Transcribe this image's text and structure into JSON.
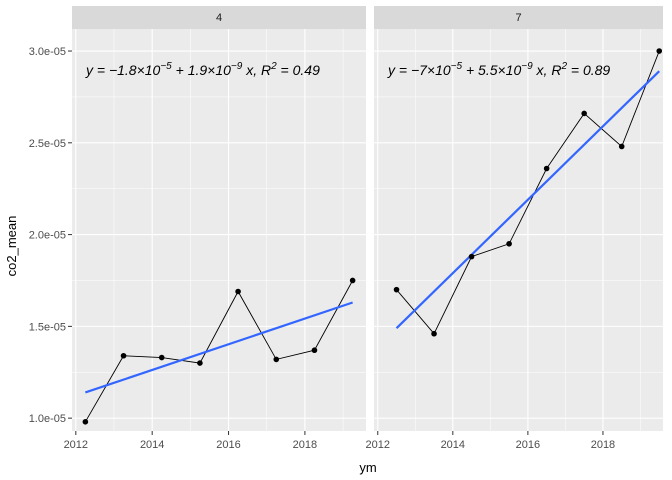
{
  "chart_data": {
    "type": "line",
    "xlabel": "ym",
    "ylabel": "co2_mean",
    "xlim": [
      2011.9,
      2019.6
    ],
    "ylim": [
      9.3e-06,
      3.12e-05
    ],
    "x_ticks": [
      {
        "value": 2012,
        "label": "2012"
      },
      {
        "value": 2014,
        "label": "2014"
      },
      {
        "value": 2016,
        "label": "2016"
      },
      {
        "value": 2018,
        "label": "2018"
      }
    ],
    "y_ticks": [
      {
        "value": 1e-05,
        "label": "1.0e-05"
      },
      {
        "value": 1.5e-05,
        "label": "1.5e-05"
      },
      {
        "value": 2e-05,
        "label": "2.0e-05"
      },
      {
        "value": 2.5e-05,
        "label": "2.5e-05"
      },
      {
        "value": 3e-05,
        "label": "3.0e-05"
      }
    ],
    "grid": true,
    "colors": {
      "panel_bg": "#ebebeb",
      "strip_bg": "#d9d9d9",
      "grid": "#ffffff",
      "data_line": "#000000",
      "fit_line": "#3366ff"
    },
    "facets": [
      {
        "label": "4",
        "x": [
          2012.25,
          2013.25,
          2014.25,
          2015.25,
          2016.25,
          2017.25,
          2018.25,
          2019.25
        ],
        "y": [
          9.8e-06,
          1.34e-05,
          1.33e-05,
          1.3e-05,
          1.69e-05,
          1.32e-05,
          1.37e-05,
          1.75e-05
        ],
        "fit": {
          "x": [
            2012.25,
            2019.25
          ],
          "y": [
            1.14e-05,
            1.63e-05
          ]
        },
        "equation": {
          "a": "1.8",
          "a_exp": "−5",
          "b": "1.9",
          "b_exp": "−9",
          "r2": "0.49"
        }
      },
      {
        "label": "7",
        "x": [
          2012.5,
          2013.5,
          2014.5,
          2015.5,
          2016.5,
          2017.5,
          2018.5,
          2019.5
        ],
        "y": [
          1.7e-05,
          1.46e-05,
          1.88e-05,
          1.95e-05,
          2.36e-05,
          2.66e-05,
          2.48e-05,
          3e-05
        ],
        "fit": {
          "x": [
            2012.5,
            2019.5
          ],
          "y": [
            1.49e-05,
            2.89e-05
          ]
        },
        "equation": {
          "a": "7",
          "a_exp": "−5",
          "b": "5.5",
          "b_exp": "−9",
          "r2": "0.89"
        }
      }
    ]
  }
}
